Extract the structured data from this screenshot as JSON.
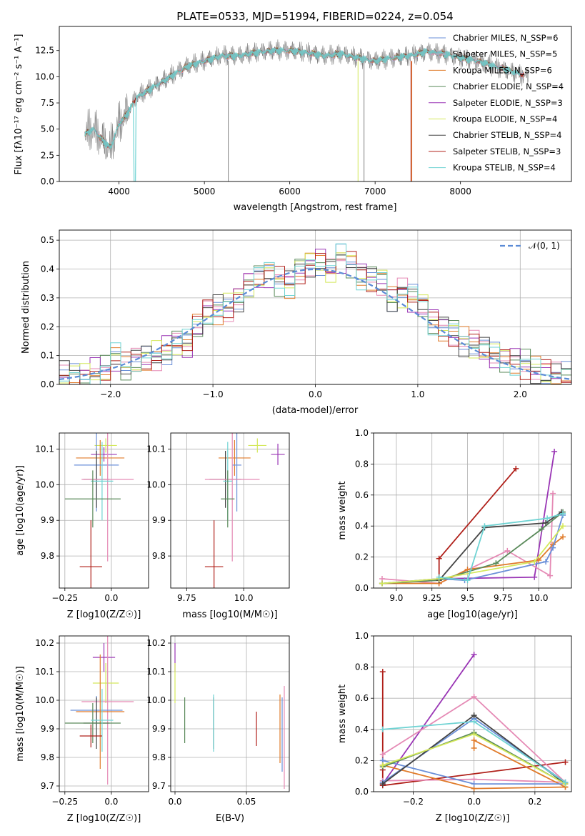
{
  "chart_data": [
    {
      "type": "line",
      "title": "PLATE=0533, MJD=51994, FIBERID=0224, z=0.054",
      "xlabel": "wavelength [Angstrom, rest frame]",
      "ylabel": "Flux [fλ10⁻¹⁷ erg cm⁻² s⁻¹ A⁻¹]",
      "xlim": [
        3300,
        9300
      ],
      "ylim": [
        0,
        14.8
      ],
      "xticks": [
        4000,
        5000,
        6000,
        7000,
        8000
      ],
      "yticks": [
        0.0,
        2.5,
        5.0,
        7.5,
        10.0,
        12.5
      ],
      "legend_position": "top-right",
      "spectrum_envelope": {
        "x": [
          3600,
          3700,
          3800,
          3900,
          4000,
          4100,
          4200,
          4300,
          4400,
          4500,
          4600,
          4800,
          5000,
          5200,
          5400,
          5600,
          5800,
          6000,
          6200,
          6400,
          6600,
          6800,
          7000,
          7200,
          7400,
          7600,
          7800,
          8000,
          8200,
          8400,
          8600,
          8800
        ],
        "y": [
          4.5,
          5.0,
          4.0,
          3.2,
          5.5,
          6.5,
          8.0,
          8.5,
          9.0,
          9.5,
          10.0,
          11.0,
          11.5,
          12.0,
          12.0,
          12.3,
          12.5,
          12.5,
          12.3,
          12.0,
          12.2,
          11.8,
          11.5,
          11.8,
          12.0,
          12.4,
          12.2,
          11.8,
          11.5,
          11.0,
          10.5,
          10.0
        ]
      },
      "series": [
        {
          "name": "Chabrier MILES, N_SSP=6",
          "color": "#6a8fd8"
        },
        {
          "name": "Salpeter MILES, N_SSP=5",
          "color": "#e58ab5"
        },
        {
          "name": "Kroupa MILES, N_SSP=6",
          "color": "#e07b2a"
        },
        {
          "name": "Chabrier ELODIE, N_SSP=4",
          "color": "#5a8a5a"
        },
        {
          "name": "Salpeter ELODIE, N_SSP=3",
          "color": "#9a36b5"
        },
        {
          "name": "Kroupa ELODIE, N_SSP=4",
          "color": "#d4e85a"
        },
        {
          "name": "Chabrier STELIB, N_SSP=4",
          "color": "#444444"
        },
        {
          "name": "Salpeter STELIB, N_SSP=3",
          "color": "#b0201a"
        },
        {
          "name": "Kroupa STELIB, N_SSP=4",
          "color": "#6fd3d3"
        }
      ]
    },
    {
      "type": "line",
      "xlabel": "(data-model)/error",
      "ylabel": "Normed distribution",
      "xlim": [
        -2.5,
        2.5
      ],
      "ylim": [
        0,
        0.535
      ],
      "xticks": [
        -2,
        -1,
        0,
        1,
        2
      ],
      "yticks": [
        0.0,
        0.1,
        0.2,
        0.3,
        0.4,
        0.5
      ],
      "grid": true,
      "legend": "𝒩(0, 1)",
      "legend_position": "top-right",
      "bins": [
        -2.5,
        -2.4,
        -2.3,
        -2.2,
        -2.1,
        -2.0,
        -1.9,
        -1.8,
        -1.7,
        -1.6,
        -1.5,
        -1.4,
        -1.3,
        -1.2,
        -1.1,
        -1.0,
        -0.9,
        -0.8,
        -0.7,
        -0.6,
        -0.5,
        -0.4,
        -0.3,
        -0.2,
        -0.1,
        0.0,
        0.1,
        0.2,
        0.3,
        0.4,
        0.5,
        0.6,
        0.7,
        0.8,
        0.9,
        1.0,
        1.1,
        1.2,
        1.3,
        1.4,
        1.5,
        1.6,
        1.7,
        1.8,
        1.9,
        2.0,
        2.1,
        2.2,
        2.3,
        2.4
      ],
      "hist_base": [
        0.03,
        0.025,
        0.03,
        0.04,
        0.05,
        0.09,
        0.06,
        0.08,
        0.09,
        0.1,
        0.12,
        0.15,
        0.14,
        0.2,
        0.25,
        0.26,
        0.27,
        0.3,
        0.35,
        0.37,
        0.38,
        0.36,
        0.35,
        0.4,
        0.42,
        0.43,
        0.4,
        0.44,
        0.42,
        0.38,
        0.37,
        0.36,
        0.3,
        0.32,
        0.3,
        0.27,
        0.22,
        0.2,
        0.18,
        0.15,
        0.14,
        0.12,
        0.1,
        0.09,
        0.08,
        0.07,
        0.05,
        0.04,
        0.03,
        0.025
      ],
      "normal_curve": "dashed"
    },
    {
      "type": "scatter",
      "xlabel": "Z [log10(Z/Z☉)]",
      "ylabel": "age  [log10(age/yr)]",
      "xlim": [
        -0.28,
        0.2
      ],
      "ylim": [
        9.71,
        10.145
      ],
      "xticks": [
        -0.25,
        0.0
      ],
      "yticks": [
        9.8,
        9.9,
        10.0,
        10.1
      ],
      "errorbars": [
        {
          "x": -0.03,
          "xerr": 0.06,
          "y": 10.11,
          "yerr": 0.02,
          "color": "#d4e85a"
        },
        {
          "x": -0.04,
          "xerr": 0.07,
          "y": 10.085,
          "yerr": 0.02,
          "color": "#9a36b5"
        },
        {
          "x": -0.06,
          "xerr": 0.13,
          "y": 10.075,
          "yerr": 0.05,
          "color": "#e07b2a"
        },
        {
          "x": -0.08,
          "xerr": 0.12,
          "y": 10.055,
          "yerr": 0.13,
          "color": "#6a8fd8"
        },
        {
          "x": -0.08,
          "xerr": 0.07,
          "y": 10.015,
          "yerr": 0.08,
          "color": "#444444"
        },
        {
          "x": -0.02,
          "xerr": 0.14,
          "y": 10.015,
          "yerr": 0.23,
          "color": "#e58ab5"
        },
        {
          "x": -0.05,
          "xerr": 0.06,
          "y": 10.01,
          "yerr": 0.11,
          "color": "#6fd3d3"
        },
        {
          "x": -0.1,
          "xerr": 0.15,
          "y": 9.96,
          "yerr": 0.08,
          "color": "#5a8a5a"
        },
        {
          "x": -0.11,
          "xerr": 0.06,
          "y": 9.77,
          "yerr": 0.13,
          "color": "#b0201a"
        }
      ]
    },
    {
      "type": "scatter",
      "xlabel": "mass [log10(M/M☉)]",
      "ylabel": "",
      "xlim": [
        9.68,
        10.2
      ],
      "ylim": [
        9.71,
        10.145
      ],
      "xticks": [
        9.75,
        10.0
      ],
      "yticks": [
        9.8,
        9.9,
        10.0,
        10.1
      ],
      "errorbars": [
        {
          "x": 10.06,
          "xerr": 0.04,
          "y": 10.11,
          "yerr": 0.02,
          "color": "#d4e85a"
        },
        {
          "x": 10.15,
          "xerr": 0.03,
          "y": 10.085,
          "yerr": 0.03,
          "color": "#9a36b5"
        },
        {
          "x": 9.96,
          "xerr": 0.07,
          "y": 10.075,
          "yerr": 0.05,
          "color": "#e07b2a"
        },
        {
          "x": 9.97,
          "xerr": 0.02,
          "y": 10.055,
          "yerr": 0.13,
          "color": "#6a8fd8"
        },
        {
          "x": 9.92,
          "xerr": 0.07,
          "y": 10.015,
          "yerr": 0.08,
          "color": "#444444"
        },
        {
          "x": 9.95,
          "xerr": 0.12,
          "y": 10.015,
          "yerr": 0.23,
          "color": "#e58ab5"
        },
        {
          "x": 9.93,
          "xerr": 0.02,
          "y": 10.01,
          "yerr": 0.11,
          "color": "#6fd3d3"
        },
        {
          "x": 9.93,
          "xerr": 0.03,
          "y": 9.96,
          "yerr": 0.08,
          "color": "#5a8a5a"
        },
        {
          "x": 9.87,
          "xerr": 0.04,
          "y": 9.77,
          "yerr": 0.13,
          "color": "#b0201a"
        }
      ]
    },
    {
      "type": "line",
      "xlabel": "age  [log10(age/yr)]",
      "ylabel": "mass weight",
      "xlim": [
        8.84,
        10.23
      ],
      "ylim": [
        0,
        1.0
      ],
      "xticks": [
        9.0,
        9.25,
        9.5,
        9.75,
        10.0
      ],
      "yticks": [
        0.0,
        0.2,
        0.4,
        0.6,
        0.8,
        1.0
      ],
      "grid": true,
      "series": [
        {
          "color": "#b0201a",
          "x": [
            9.3,
            9.3,
            9.84
          ],
          "y": [
            0.03,
            0.19,
            0.77
          ]
        },
        {
          "color": "#9a36b5",
          "x": [
            8.9,
            9.3,
            9.97,
            10.11
          ],
          "y": [
            0.03,
            0.06,
            0.07,
            0.88
          ]
        },
        {
          "color": "#e58ab5",
          "x": [
            8.9,
            9.3,
            9.78,
            10.08,
            10.1
          ],
          "y": [
            0.06,
            0.03,
            0.24,
            0.08,
            0.61
          ]
        },
        {
          "color": "#e07b2a",
          "x": [
            8.9,
            9.3,
            9.5,
            10.0,
            10.1,
            10.17
          ],
          "y": [
            0.03,
            0.03,
            0.12,
            0.18,
            0.28,
            0.33
          ]
        },
        {
          "color": "#6a8fd8",
          "x": [
            8.9,
            9.3,
            9.48,
            10.05,
            10.1,
            10.17
          ],
          "y": [
            0.03,
            0.06,
            0.05,
            0.17,
            0.26,
            0.47
          ]
        },
        {
          "color": "#5a8a5a",
          "x": [
            8.9,
            9.3,
            9.7,
            10.02,
            10.17
          ],
          "y": [
            0.03,
            0.05,
            0.16,
            0.38,
            0.49
          ]
        },
        {
          "color": "#444444",
          "x": [
            9.3,
            9.62,
            10.05,
            10.16
          ],
          "y": [
            0.05,
            0.39,
            0.42,
            0.49
          ]
        },
        {
          "color": "#d4e85a",
          "x": [
            8.9,
            9.3,
            9.97,
            10.17
          ],
          "y": [
            0.03,
            0.06,
            0.17,
            0.4
          ]
        },
        {
          "color": "#6fd3d3",
          "x": [
            9.3,
            9.5,
            9.62,
            10.06,
            10.17
          ],
          "y": [
            0.07,
            0.05,
            0.4,
            0.45,
            0.48
          ]
        }
      ]
    },
    {
      "type": "scatter",
      "xlabel": "Z [log10(Z/Z☉)]",
      "ylabel": "mass [log10(M/M☉)]",
      "xlim": [
        -0.28,
        0.2
      ],
      "ylim": [
        9.68,
        10.225
      ],
      "xticks": [
        -0.25,
        0.0
      ],
      "yticks": [
        9.7,
        9.8,
        9.9,
        10.0,
        10.1,
        10.2
      ],
      "errorbars": [
        {
          "x": -0.04,
          "xerr": 0.06,
          "y": 10.15,
          "yerr": 0.05,
          "color": "#9a36b5"
        },
        {
          "x": -0.03,
          "xerr": 0.07,
          "y": 10.06,
          "yerr": 0.07,
          "color": "#d4e85a"
        },
        {
          "x": -0.02,
          "xerr": 0.14,
          "y": 9.995,
          "yerr": 0.29,
          "color": "#e58ab5"
        },
        {
          "x": -0.08,
          "xerr": 0.14,
          "y": 9.965,
          "yerr": 0.05,
          "color": "#6a8fd8"
        },
        {
          "x": -0.06,
          "xerr": 0.13,
          "y": 9.96,
          "yerr": 0.2,
          "color": "#e07b2a"
        },
        {
          "x": -0.08,
          "xerr": 0.07,
          "y": 9.92,
          "yerr": 0.09,
          "color": "#444444"
        },
        {
          "x": -0.1,
          "xerr": 0.15,
          "y": 9.92,
          "yerr": 0.07,
          "color": "#5a8a5a"
        },
        {
          "x": -0.05,
          "xerr": 0.06,
          "y": 9.93,
          "yerr": 0.11,
          "color": "#6fd3d3"
        },
        {
          "x": -0.11,
          "xerr": 0.06,
          "y": 9.875,
          "yerr": 0.04,
          "color": "#b0201a"
        }
      ]
    },
    {
      "type": "scatter",
      "xlabel": "E(B-V)",
      "ylabel": "",
      "xlim": [
        -0.003,
        0.08
      ],
      "ylim": [
        9.68,
        10.225
      ],
      "xticks": [
        0.0,
        0.05
      ],
      "yticks": [
        9.7,
        9.8,
        9.9,
        10.0,
        10.1,
        10.2
      ],
      "errorbars": [
        {
          "x": 0.0,
          "y": 10.15,
          "yerr": 0.05,
          "color": "#9a36b5"
        },
        {
          "x": 0.0,
          "y": 10.06,
          "yerr": 0.07,
          "color": "#d4e85a"
        },
        {
          "x": 0.0068,
          "y": 9.93,
          "yerr": 0.08,
          "color": "#5a8a5a"
        },
        {
          "x": 0.027,
          "y": 9.92,
          "yerr": 0.09,
          "color": "#444444"
        },
        {
          "x": 0.027,
          "y": 9.92,
          "yerr": 0.1,
          "color": "#6fd3d3"
        },
        {
          "x": 0.057,
          "y": 9.9,
          "yerr": 0.06,
          "color": "#b0201a"
        },
        {
          "x": 0.0735,
          "y": 9.9,
          "yerr": 0.12,
          "color": "#e07b2a"
        },
        {
          "x": 0.075,
          "y": 9.88,
          "yerr": 0.13,
          "color": "#6a8fd8"
        },
        {
          "x": 0.0765,
          "y": 9.87,
          "yerr": 0.18,
          "color": "#e58ab5"
        }
      ]
    },
    {
      "type": "line",
      "xlabel": "Z [log10(Z/Z☉)]",
      "ylabel": "mass weight",
      "xlim": [
        -0.33,
        0.32
      ],
      "ylim": [
        0,
        1.0
      ],
      "xticks": [
        -0.2,
        0.0,
        0.2
      ],
      "yticks": [
        0.0,
        0.2,
        0.4,
        0.6,
        0.8,
        1.0
      ],
      "grid": true,
      "series": [
        {
          "color": "#b0201a",
          "x": [
            -0.3,
            -0.3,
            -0.3,
            0.3
          ],
          "y": [
            0.77,
            0.14,
            0.04,
            0.19
          ]
        },
        {
          "color": "#9a36b5",
          "x": [
            -0.3,
            0.0
          ],
          "y": [
            0.05,
            0.88
          ]
        },
        {
          "color": "#e58ab5",
          "x": [
            -0.3,
            0.0,
            0.3
          ],
          "y": [
            0.24,
            0.61,
            0.06
          ]
        },
        {
          "color": "#e58ab5",
          "x": [
            -0.3,
            0.0,
            0.3
          ],
          "y": [
            0.07,
            0.08,
            0.06
          ]
        },
        {
          "color": "#e07b2a",
          "x": [
            -0.3,
            0.0,
            0.3
          ],
          "y": [
            0.17,
            0.02,
            0.03
          ]
        },
        {
          "color": "#e07b2a",
          "x": [
            0.0,
            0.0,
            0.3
          ],
          "y": [
            0.28,
            0.33,
            0.03
          ]
        },
        {
          "color": "#6a8fd8",
          "x": [
            -0.3,
            0.0,
            0.3
          ],
          "y": [
            0.2,
            0.05,
            0.05
          ]
        },
        {
          "color": "#6a8fd8",
          "x": [
            -0.3,
            0.0,
            0.3
          ],
          "y": [
            0.06,
            0.47,
            0.06
          ]
        },
        {
          "color": "#5a8a5a",
          "x": [
            -0.3,
            0.0,
            0.3
          ],
          "y": [
            0.16,
            0.38,
            0.05
          ]
        },
        {
          "color": "#444444",
          "x": [
            -0.3,
            0.0,
            0.3
          ],
          "y": [
            0.05,
            0.49,
            0.05
          ]
        },
        {
          "color": "#d4e85a",
          "x": [
            -0.3,
            0.0,
            0.3
          ],
          "y": [
            0.17,
            0.37,
            0.05
          ]
        },
        {
          "color": "#6fd3d3",
          "x": [
            -0.3,
            0.0,
            0.3
          ],
          "y": [
            0.4,
            0.45,
            0.06
          ]
        }
      ]
    }
  ]
}
